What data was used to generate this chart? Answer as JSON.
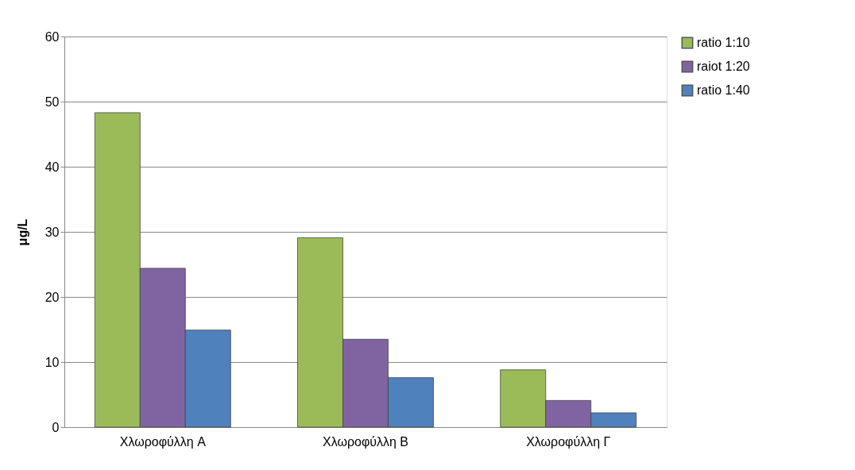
{
  "chart_data": {
    "type": "bar",
    "ylabel": "μg/L",
    "categories": [
      "Χλωροφύλλη A",
      "Χλωροφύλλη B",
      "Χλωροφύλλη Γ"
    ],
    "series": [
      {
        "name": "ratio 1:10",
        "color": "#9bbb59",
        "values": [
          48.3,
          29.1,
          8.8
        ]
      },
      {
        "name": "raiot 1:20",
        "color": "#8064a2",
        "values": [
          24.4,
          13.5,
          4.1
        ]
      },
      {
        "name": "ratio 1:40",
        "color": "#4f81bd",
        "values": [
          14.9,
          7.6,
          2.2
        ]
      }
    ],
    "ylim": [
      0,
      60
    ],
    "yticks": [
      0,
      10,
      20,
      30,
      40,
      50,
      60
    ],
    "grid": "y",
    "legend": "right"
  }
}
